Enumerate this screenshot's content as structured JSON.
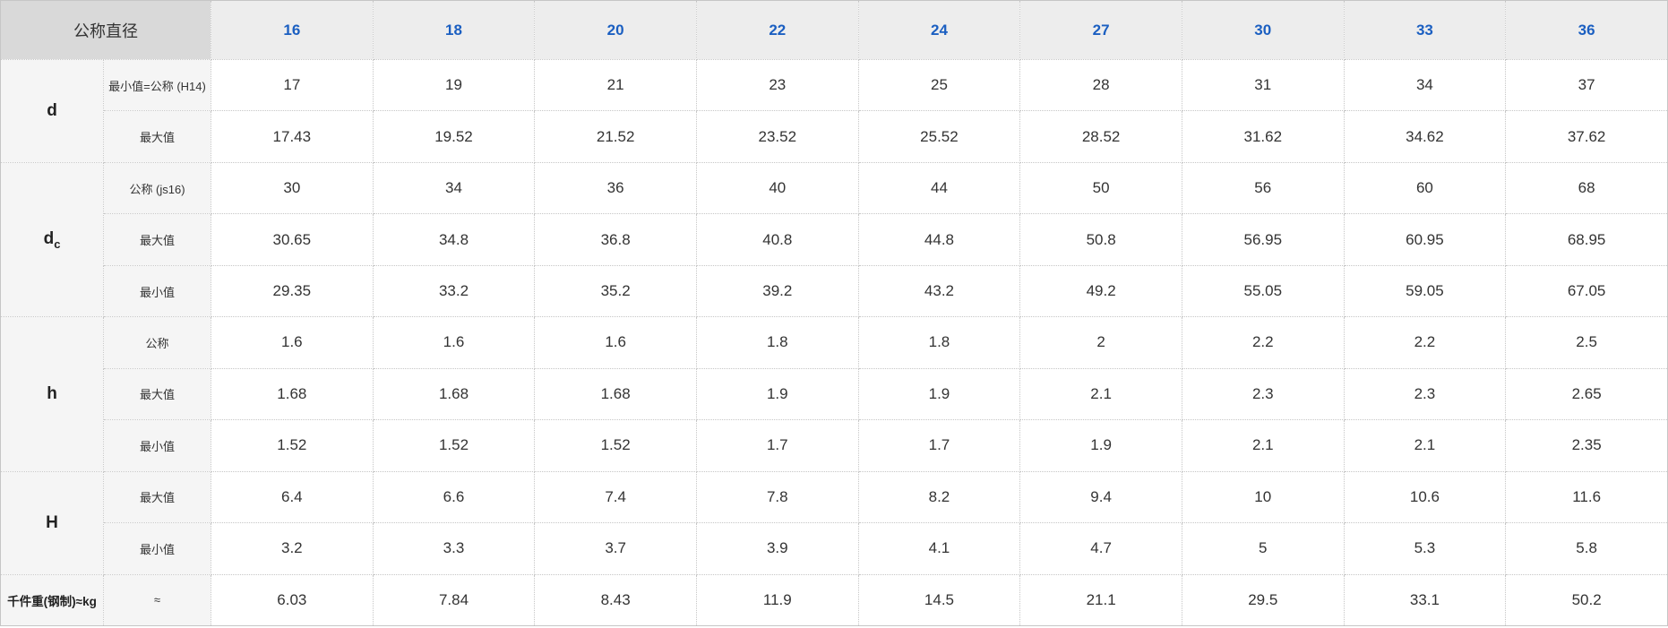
{
  "table": {
    "corner_label": "公称直径",
    "diameters": [
      "16",
      "18",
      "20",
      "22",
      "24",
      "27",
      "30",
      "33",
      "36"
    ],
    "groups": [
      {
        "id": "d",
        "name": "d",
        "sub": "",
        "small": false,
        "rows": [
          {
            "label": "最小值=公称 (H14)",
            "values": [
              "17",
              "19",
              "21",
              "23",
              "25",
              "28",
              "31",
              "34",
              "37"
            ]
          },
          {
            "label": "最大值",
            "values": [
              "17.43",
              "19.52",
              "21.52",
              "23.52",
              "25.52",
              "28.52",
              "31.62",
              "34.62",
              "37.62"
            ]
          }
        ]
      },
      {
        "id": "dc",
        "name": "d",
        "sub": "c",
        "small": false,
        "rows": [
          {
            "label": "公称 (js16)",
            "values": [
              "30",
              "34",
              "36",
              "40",
              "44",
              "50",
              "56",
              "60",
              "68"
            ]
          },
          {
            "label": "最大值",
            "values": [
              "30.65",
              "34.8",
              "36.8",
              "40.8",
              "44.8",
              "50.8",
              "56.95",
              "60.95",
              "68.95"
            ]
          },
          {
            "label": "最小值",
            "values": [
              "29.35",
              "33.2",
              "35.2",
              "39.2",
              "43.2",
              "49.2",
              "55.05",
              "59.05",
              "67.05"
            ]
          }
        ]
      },
      {
        "id": "h",
        "name": "h",
        "sub": "",
        "small": false,
        "rows": [
          {
            "label": "公称",
            "values": [
              "1.6",
              "1.6",
              "1.6",
              "1.8",
              "1.8",
              "2",
              "2.2",
              "2.2",
              "2.5"
            ]
          },
          {
            "label": "最大值",
            "values": [
              "1.68",
              "1.68",
              "1.68",
              "1.9",
              "1.9",
              "2.1",
              "2.3",
              "2.3",
              "2.65"
            ]
          },
          {
            "label": "最小值",
            "values": [
              "1.52",
              "1.52",
              "1.52",
              "1.7",
              "1.7",
              "1.9",
              "2.1",
              "2.1",
              "2.35"
            ]
          }
        ]
      },
      {
        "id": "H",
        "name": "H",
        "sub": "",
        "small": false,
        "rows": [
          {
            "label": "最大值",
            "values": [
              "6.4",
              "6.6",
              "7.4",
              "7.8",
              "8.2",
              "9.4",
              "10",
              "10.6",
              "11.6"
            ]
          },
          {
            "label": "最小值",
            "values": [
              "3.2",
              "3.3",
              "3.7",
              "3.9",
              "4.1",
              "4.7",
              "5",
              "5.3",
              "5.8"
            ]
          }
        ]
      },
      {
        "id": "weight",
        "name": "千件重(钢制)≈kg",
        "sub": "",
        "small": true,
        "rows": [
          {
            "label": "≈",
            "values": [
              "6.03",
              "7.84",
              "8.43",
              "11.9",
              "14.5",
              "21.1",
              "29.5",
              "33.1",
              "50.2"
            ]
          }
        ]
      }
    ],
    "colors": {
      "header_text": "#1b5fc1",
      "header_bg": "#ededed",
      "corner_bg": "#d9d9d9",
      "label_bg": "#f5f5f5",
      "border": "#c6c6c6",
      "text": "#333333"
    }
  }
}
